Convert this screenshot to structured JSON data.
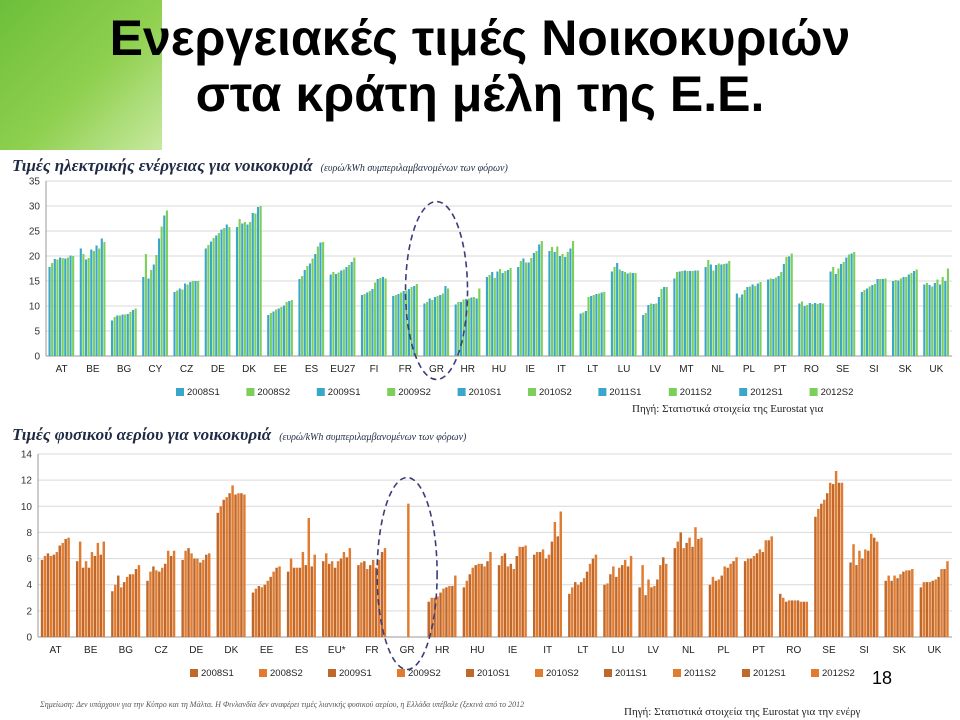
{
  "slide": {
    "title_line1": "Ενεργειακές τιμές Νοικοκυριών",
    "title_line2": "στα κράτη μέλη της Ε.Ε.",
    "page_number": "18",
    "accent_color": "#7cc443"
  },
  "chart_data": [
    {
      "type": "bar",
      "title": "Τιμές ηλεκτρικής ενέργειας για νοικοκυριά",
      "subtitle": "(ευρώ/kWh συμπεριλαμβανομένων των φόρων)",
      "source": "Πηγή: Στατιστικά στοιχεία της Eurostat για",
      "ylim": [
        0,
        35
      ],
      "yticks": [
        0,
        5,
        10,
        15,
        20,
        25,
        30,
        35
      ],
      "grid": true,
      "legend_position": "bottom",
      "highlight_category": "GR",
      "categories": [
        "AT",
        "BE",
        "BG",
        "CY",
        "CZ",
        "DE",
        "DK",
        "EE",
        "ES",
        "EU27",
        "FI",
        "FR",
        "GR",
        "HR",
        "HU",
        "IE",
        "IT",
        "LT",
        "LU",
        "LV",
        "MT",
        "NL",
        "PL",
        "PT",
        "RO",
        "SE",
        "SI",
        "SK",
        "UK"
      ],
      "series": [
        {
          "name": "2008S1",
          "color": "#3aa6c9",
          "values": [
            17.8,
            21.5,
            7.1,
            15.8,
            12.8,
            21.5,
            25.8,
            8.2,
            15.4,
            16.3,
            12.2,
            12.0,
            10.5,
            10.3,
            15.8,
            17.8,
            21.0,
            8.5,
            16.9,
            8.2,
            15.5,
            17.8,
            12.5,
            15.3,
            10.5,
            16.9,
            12.8,
            15.0,
            14.3
          ]
        },
        {
          "name": "2008S2",
          "color": "#7ccf5a",
          "values": [
            18.6,
            20.4,
            7.8,
            20.4,
            13.1,
            22.2,
            27.4,
            8.6,
            16.0,
            16.8,
            12.4,
            12.2,
            10.8,
            10.8,
            16.2,
            19.0,
            21.8,
            8.7,
            17.8,
            8.6,
            16.8,
            19.2,
            11.7,
            15.5,
            10.9,
            17.8,
            13.2,
            15.2,
            14.6
          ]
        },
        {
          "name": "2009S1",
          "color": "#3aa6c9",
          "values": [
            19.4,
            19.3,
            8.1,
            15.5,
            13.5,
            22.9,
            26.5,
            8.9,
            17.2,
            16.4,
            12.7,
            12.4,
            11.5,
            10.8,
            16.8,
            19.5,
            20.8,
            9.0,
            18.6,
            10.2,
            16.9,
            18.3,
            12.3,
            15.4,
            10.0,
            16.4,
            13.5,
            15.1,
            14.2
          ]
        },
        {
          "name": "2009S2",
          "color": "#7ccf5a",
          "values": [
            19.3,
            19.6,
            8.1,
            17.2,
            13.3,
            23.6,
            26.8,
            9.3,
            18.0,
            16.7,
            13.0,
            12.7,
            11.2,
            11.3,
            15.6,
            18.7,
            21.9,
            11.8,
            17.3,
            10.5,
            17.0,
            17.1,
            13.2,
            15.7,
            10.2,
            17.5,
            13.9,
            15.5,
            13.9
          ]
        },
        {
          "name": "2010S1",
          "color": "#3aa6c9",
          "values": [
            19.7,
            21.3,
            8.3,
            18.3,
            14.5,
            24.1,
            26.3,
            9.5,
            18.5,
            17.1,
            13.4,
            13.0,
            11.8,
            11.4,
            16.9,
            18.7,
            20.0,
            12.0,
            17.0,
            10.4,
            17.1,
            18.2,
            13.8,
            16.0,
            10.6,
            18.4,
            14.2,
            15.8,
            14.6
          ]
        },
        {
          "name": "2010S2",
          "color": "#7ccf5a",
          "values": [
            19.6,
            21.0,
            8.3,
            20.2,
            14.3,
            24.6,
            26.8,
            9.8,
            19.5,
            17.3,
            14.7,
            13.1,
            12.0,
            11.5,
            17.4,
            19.6,
            20.4,
            12.2,
            16.8,
            10.5,
            17.0,
            18.5,
            13.9,
            16.8,
            10.4,
            18.8,
            14.4,
            15.8,
            15.3
          ]
        },
        {
          "name": "2011S1",
          "color": "#3aa6c9",
          "values": [
            19.5,
            22.1,
            8.4,
            23.5,
            14.8,
            25.3,
            28.6,
            10.1,
            20.4,
            17.8,
            15.4,
            13.4,
            12.2,
            11.7,
            16.6,
            20.6,
            19.8,
            12.4,
            16.5,
            11.8,
            17.0,
            18.3,
            14.3,
            18.4,
            10.6,
            19.7,
            15.4,
            16.3,
            14.3
          ]
        },
        {
          "name": "2011S2",
          "color": "#7ccf5a",
          "values": [
            19.7,
            21.5,
            8.8,
            25.9,
            15.0,
            25.6,
            28.5,
            10.8,
            21.9,
            18.2,
            15.6,
            13.8,
            12.5,
            11.8,
            17.0,
            21.0,
            20.8,
            12.5,
            16.7,
            13.4,
            17.0,
            18.4,
            14.0,
            19.8,
            10.4,
            20.3,
            15.4,
            16.6,
            15.8
          ]
        },
        {
          "name": "2012S1",
          "color": "#3aa6c9",
          "values": [
            20.1,
            23.5,
            9.2,
            28.1,
            15.0,
            26.3,
            29.8,
            11.0,
            22.7,
            18.8,
            15.8,
            14.0,
            14.0,
            11.5,
            17.2,
            22.3,
            21.5,
            12.7,
            16.6,
            13.8,
            17.1,
            18.5,
            14.5,
            19.9,
            10.6,
            20.5,
            15.4,
            17.0,
            15.0
          ]
        },
        {
          "name": "2012S2",
          "color": "#7ccf5a",
          "values": [
            20.0,
            22.8,
            9.5,
            29.1,
            15.0,
            25.8,
            30.0,
            11.2,
            22.8,
            19.7,
            15.5,
            14.4,
            13.5,
            13.5,
            17.6,
            23.0,
            23.0,
            12.8,
            16.6,
            13.8,
            17.1,
            19.0,
            14.8,
            20.5,
            10.5,
            20.8,
            15.5,
            17.3,
            17.5
          ]
        }
      ]
    },
    {
      "type": "bar",
      "title": "Τιμές φυσικού αερίου για νοικοκυριά",
      "subtitle": "(ευρώ/kWh συμπεριλαμβανομένων των φόρων)",
      "source": "Πηγή: Στατιστικά στοιχεία της Eurostat για την ενέργ",
      "footnote": "Σημείωση: Δεν υπάρχουν για την Κύπρο και τη Μάλτα. Η Φινλανδία δεν αναφέρει τιμές λιανικής φυσικού αερίου, η Ελλάδα υπέβαλε (ξεκινά από το 2012",
      "ylim": [
        0,
        14
      ],
      "yticks": [
        0,
        2,
        4,
        6,
        8,
        10,
        12,
        14
      ],
      "grid": true,
      "legend_position": "bottom",
      "highlight_category": "GR",
      "categories": [
        "AT",
        "BE",
        "BG",
        "CZ",
        "DE",
        "DK",
        "EE",
        "ES",
        "EU*",
        "FR",
        "GR",
        "HR",
        "HU",
        "IE",
        "IT",
        "LT",
        "LU",
        "LV",
        "NL",
        "PL",
        "PT",
        "RO",
        "SE",
        "SI",
        "SK",
        "UK"
      ],
      "series": [
        {
          "name": "2008S1",
          "color": "#c0682a",
          "values": [
            5.9,
            5.8,
            3.5,
            4.3,
            5.9,
            9.5,
            3.4,
            5.0,
            5.8,
            5.5,
            null,
            2.7,
            3.8,
            5.5,
            6.3,
            3.3,
            4.0,
            3.8,
            6.8,
            4.0,
            5.8,
            3.3,
            9.2,
            5.7,
            4.3,
            3.8
          ]
        },
        {
          "name": "2008S2",
          "color": "#e07b30",
          "values": [
            6.2,
            7.3,
            4.0,
            5.0,
            6.6,
            10.0,
            3.7,
            6.0,
            6.4,
            5.7,
            null,
            3.0,
            4.3,
            6.2,
            6.5,
            3.8,
            4.1,
            5.5,
            7.3,
            4.6,
            6.0,
            3.0,
            9.8,
            7.1,
            4.7,
            4.2
          ]
        },
        {
          "name": "2009S1",
          "color": "#c0682a",
          "values": [
            6.4,
            5.3,
            4.7,
            5.4,
            6.8,
            10.5,
            3.9,
            5.3,
            5.6,
            5.8,
            null,
            3.0,
            4.8,
            6.4,
            6.5,
            4.2,
            4.8,
            3.2,
            8.0,
            4.3,
            6.0,
            2.7,
            10.2,
            5.5,
            4.3,
            4.2
          ]
        },
        {
          "name": "2009S2",
          "color": "#e07b30",
          "values": [
            6.2,
            5.8,
            3.8,
            5.1,
            6.4,
            10.7,
            3.8,
            5.3,
            5.8,
            5.2,
            null,
            3.1,
            5.3,
            5.4,
            6.7,
            4.0,
            5.4,
            4.4,
            6.8,
            4.4,
            6.2,
            2.8,
            10.5,
            6.6,
            4.7,
            4.2
          ]
        },
        {
          "name": "2010S1",
          "color": "#c0682a",
          "values": [
            6.3,
            5.3,
            4.2,
            5.0,
            6.0,
            11.0,
            4.0,
            5.3,
            5.3,
            5.5,
            null,
            3.4,
            5.5,
            5.6,
            6.0,
            4.2,
            4.6,
            3.8,
            7.2,
            4.7,
            6.4,
            2.8,
            11.0,
            6.0,
            4.5,
            4.3
          ]
        },
        {
          "name": "2010S2",
          "color": "#e07b30",
          "values": [
            6.5,
            6.5,
            4.6,
            5.3,
            6.0,
            11.6,
            4.3,
            6.5,
            5.8,
            5.9,
            10.2,
            3.7,
            5.6,
            5.2,
            6.3,
            4.5,
            5.3,
            3.9,
            7.6,
            5.4,
            6.7,
            2.8,
            11.8,
            6.7,
            4.8,
            4.4
          ]
        },
        {
          "name": "2011S1",
          "color": "#c0682a",
          "values": [
            7.0,
            6.2,
            4.8,
            5.6,
            5.7,
            10.9,
            4.6,
            5.5,
            6.0,
            5.3,
            null,
            3.8,
            5.6,
            6.2,
            7.3,
            5.0,
            5.5,
            4.4,
            6.9,
            5.3,
            6.5,
            2.8,
            11.7,
            6.6,
            5.0,
            4.6
          ]
        },
        {
          "name": "2011S2",
          "color": "#e07b30",
          "values": [
            7.2,
            7.2,
            4.8,
            6.6,
            5.9,
            11.0,
            5.0,
            9.1,
            6.5,
            5.9,
            null,
            3.9,
            5.4,
            6.9,
            8.8,
            5.6,
            5.9,
            5.5,
            8.4,
            5.6,
            7.4,
            2.7,
            12.7,
            7.9,
            5.1,
            5.2
          ]
        },
        {
          "name": "2012S1",
          "color": "#c0682a",
          "values": [
            7.5,
            6.3,
            5.2,
            6.2,
            6.3,
            11.0,
            5.3,
            5.4,
            6.1,
            6.5,
            null,
            3.9,
            5.8,
            6.9,
            7.7,
            6.0,
            5.4,
            6.1,
            7.5,
            5.8,
            7.4,
            2.7,
            11.8,
            7.6,
            5.1,
            5.2
          ]
        },
        {
          "name": "2012S2",
          "color": "#e07b30",
          "values": [
            7.6,
            7.3,
            5.5,
            6.6,
            6.4,
            10.9,
            5.4,
            6.3,
            6.8,
            6.8,
            null,
            4.7,
            6.5,
            7.0,
            9.6,
            6.3,
            6.2,
            5.6,
            7.6,
            6.1,
            7.7,
            2.7,
            11.8,
            7.3,
            5.2,
            5.8
          ]
        }
      ]
    }
  ]
}
